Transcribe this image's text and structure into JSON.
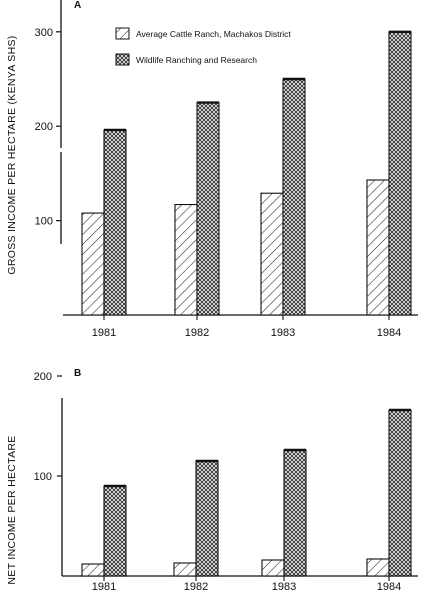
{
  "chart_data": [
    {
      "type": "bar",
      "panel_label": "A",
      "categories": [
        "1981",
        "1982",
        "1983",
        "1984"
      ],
      "series": [
        {
          "name": "Average Cattle Ranch, Machakos District",
          "values": [
            108,
            117,
            129,
            143
          ],
          "pattern": "diagonal-hatch"
        },
        {
          "name": "Wildlife Ranching and Research",
          "values": [
            196,
            225,
            250,
            300
          ],
          "pattern": "crosshatch"
        }
      ],
      "ylabel": "GROSS INCOME PER HECTARE (KENYA SHS)",
      "yticks": [
        100,
        200,
        300
      ],
      "ylim": [
        0,
        315
      ],
      "legend": "top-center",
      "grid": false
    },
    {
      "type": "bar",
      "panel_label": "B",
      "categories": [
        "1981",
        "1982",
        "1983",
        "1984"
      ],
      "series": [
        {
          "name": "Average Cattle Ranch, Machakos District",
          "values": [
            12,
            13,
            16,
            17
          ],
          "pattern": "diagonal-hatch"
        },
        {
          "name": "Wildlife Ranching and Research",
          "values": [
            90,
            115,
            126,
            166
          ],
          "pattern": "crosshatch"
        }
      ],
      "ylabel": "NET INCOME PER HECTARE",
      "yticks": [
        100,
        200
      ],
      "ylim": [
        0,
        200
      ],
      "grid": false
    }
  ]
}
